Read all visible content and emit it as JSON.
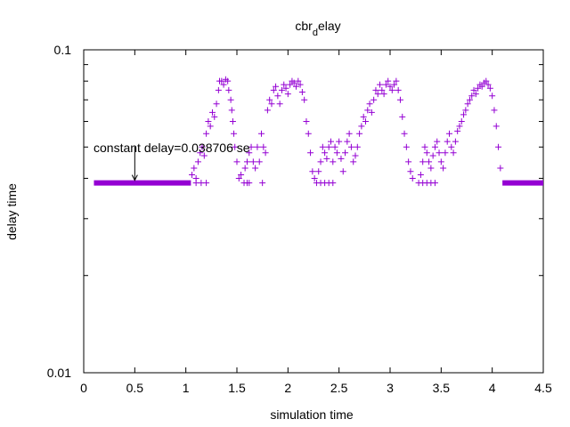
{
  "chart_data": {
    "type": "scatter",
    "title_main": "cbr",
    "title_sub": "d",
    "title_rest": "elay",
    "xlabel": "simulation time",
    "ylabel": "delay time",
    "xlim": [
      0,
      4.5
    ],
    "ylim": [
      0.01,
      0.1
    ],
    "y_scale": "log",
    "grid": false,
    "marker": "plus",
    "color": "#9400d3",
    "x_ticks": [
      {
        "v": 0,
        "label": "0"
      },
      {
        "v": 0.5,
        "label": "0.5"
      },
      {
        "v": 1,
        "label": "1"
      },
      {
        "v": 1.5,
        "label": "1.5"
      },
      {
        "v": 2,
        "label": "2"
      },
      {
        "v": 2.5,
        "label": "2.5"
      },
      {
        "v": 3,
        "label": "3"
      },
      {
        "v": 3.5,
        "label": "3.5"
      },
      {
        "v": 4,
        "label": "4"
      },
      {
        "v": 4.5,
        "label": "4.5"
      }
    ],
    "y_ticks": [
      {
        "v": 0.01,
        "label": "0.01"
      },
      {
        "v": 0.1,
        "label": "0.1"
      }
    ],
    "y_minor_ticks": [
      0.02,
      0.03,
      0.04,
      0.05,
      0.06,
      0.07,
      0.08,
      0.09
    ],
    "annotation": {
      "text": "constant delay=0.038706 se",
      "x": 0.5,
      "y": 0.0387
    },
    "constant_segments": [
      {
        "x_start": 0.1,
        "x_end": 1.05,
        "y": 0.0387
      },
      {
        "x_start": 4.1,
        "x_end": 4.5,
        "y": 0.0387
      }
    ],
    "points": [
      [
        1.1,
        0.0387
      ],
      [
        1.15,
        0.0387
      ],
      [
        1.2,
        0.0387
      ],
      [
        1.06,
        0.041
      ],
      [
        1.08,
        0.043
      ],
      [
        1.1,
        0.04
      ],
      [
        1.12,
        0.045
      ],
      [
        1.14,
        0.048
      ],
      [
        1.16,
        0.05
      ],
      [
        1.18,
        0.047
      ],
      [
        1.2,
        0.055
      ],
      [
        1.22,
        0.06
      ],
      [
        1.24,
        0.058
      ],
      [
        1.26,
        0.064
      ],
      [
        1.28,
        0.062
      ],
      [
        1.3,
        0.068
      ],
      [
        1.32,
        0.075
      ],
      [
        1.33,
        0.08
      ],
      [
        1.35,
        0.08
      ],
      [
        1.37,
        0.078
      ],
      [
        1.39,
        0.081
      ],
      [
        1.41,
        0.08
      ],
      [
        1.42,
        0.075
      ],
      [
        1.44,
        0.07
      ],
      [
        1.45,
        0.065
      ],
      [
        1.46,
        0.06
      ],
      [
        1.47,
        0.055
      ],
      [
        1.48,
        0.05
      ],
      [
        1.5,
        0.045
      ],
      [
        1.52,
        0.04
      ],
      [
        1.54,
        0.041
      ],
      [
        1.57,
        0.0387
      ],
      [
        1.6,
        0.0387
      ],
      [
        1.62,
        0.0387
      ],
      [
        1.58,
        0.043
      ],
      [
        1.6,
        0.045
      ],
      [
        1.62,
        0.048
      ],
      [
        1.64,
        0.05
      ],
      [
        1.66,
        0.045
      ],
      [
        1.68,
        0.043
      ],
      [
        1.7,
        0.05
      ],
      [
        1.72,
        0.045
      ],
      [
        1.74,
        0.055
      ],
      [
        1.75,
        0.0387
      ],
      [
        1.76,
        0.05
      ],
      [
        1.78,
        0.048
      ],
      [
        1.8,
        0.065
      ],
      [
        1.82,
        0.07
      ],
      [
        1.84,
        0.068
      ],
      [
        1.86,
        0.075
      ],
      [
        1.88,
        0.077
      ],
      [
        1.9,
        0.072
      ],
      [
        1.92,
        0.068
      ],
      [
        1.94,
        0.075
      ],
      [
        1.96,
        0.078
      ],
      [
        1.98,
        0.076
      ],
      [
        2.0,
        0.073
      ],
      [
        2.02,
        0.078
      ],
      [
        2.04,
        0.08
      ],
      [
        2.06,
        0.079
      ],
      [
        2.08,
        0.077
      ],
      [
        2.1,
        0.08
      ],
      [
        2.12,
        0.078
      ],
      [
        2.14,
        0.074
      ],
      [
        2.16,
        0.07
      ],
      [
        2.18,
        0.06
      ],
      [
        2.2,
        0.055
      ],
      [
        2.22,
        0.048
      ],
      [
        2.24,
        0.042
      ],
      [
        2.26,
        0.04
      ],
      [
        2.28,
        0.0387
      ],
      [
        2.32,
        0.0387
      ],
      [
        2.36,
        0.0387
      ],
      [
        2.4,
        0.0387
      ],
      [
        2.44,
        0.0387
      ],
      [
        2.3,
        0.042
      ],
      [
        2.32,
        0.045
      ],
      [
        2.34,
        0.05
      ],
      [
        2.36,
        0.048
      ],
      [
        2.38,
        0.046
      ],
      [
        2.4,
        0.05
      ],
      [
        2.42,
        0.052
      ],
      [
        2.44,
        0.045
      ],
      [
        2.46,
        0.05
      ],
      [
        2.48,
        0.048
      ],
      [
        2.5,
        0.052
      ],
      [
        2.52,
        0.046
      ],
      [
        2.54,
        0.042
      ],
      [
        2.56,
        0.048
      ],
      [
        2.58,
        0.052
      ],
      [
        2.6,
        0.055
      ],
      [
        2.62,
        0.05
      ],
      [
        2.64,
        0.045
      ],
      [
        2.66,
        0.047
      ],
      [
        2.68,
        0.05
      ],
      [
        2.7,
        0.055
      ],
      [
        2.72,
        0.058
      ],
      [
        2.74,
        0.062
      ],
      [
        2.76,
        0.06
      ],
      [
        2.78,
        0.065
      ],
      [
        2.8,
        0.068
      ],
      [
        2.82,
        0.064
      ],
      [
        2.84,
        0.07
      ],
      [
        2.86,
        0.075
      ],
      [
        2.88,
        0.073
      ],
      [
        2.9,
        0.078
      ],
      [
        2.92,
        0.075
      ],
      [
        2.94,
        0.073
      ],
      [
        2.96,
        0.078
      ],
      [
        2.98,
        0.08
      ],
      [
        3.0,
        0.077
      ],
      [
        3.02,
        0.075
      ],
      [
        3.04,
        0.078
      ],
      [
        3.06,
        0.08
      ],
      [
        3.08,
        0.075
      ],
      [
        3.1,
        0.07
      ],
      [
        3.12,
        0.062
      ],
      [
        3.14,
        0.055
      ],
      [
        3.16,
        0.05
      ],
      [
        3.18,
        0.045
      ],
      [
        3.2,
        0.042
      ],
      [
        3.22,
        0.04
      ],
      [
        3.28,
        0.0387
      ],
      [
        3.32,
        0.0387
      ],
      [
        3.36,
        0.0387
      ],
      [
        3.4,
        0.0387
      ],
      [
        3.44,
        0.0387
      ],
      [
        3.3,
        0.041
      ],
      [
        3.32,
        0.045
      ],
      [
        3.34,
        0.05
      ],
      [
        3.36,
        0.048
      ],
      [
        3.38,
        0.045
      ],
      [
        3.4,
        0.043
      ],
      [
        3.42,
        0.047
      ],
      [
        3.44,
        0.05
      ],
      [
        3.46,
        0.052
      ],
      [
        3.48,
        0.048
      ],
      [
        3.5,
        0.045
      ],
      [
        3.52,
        0.043
      ],
      [
        3.54,
        0.048
      ],
      [
        3.56,
        0.052
      ],
      [
        3.58,
        0.055
      ],
      [
        3.6,
        0.05
      ],
      [
        3.62,
        0.048
      ],
      [
        3.64,
        0.052
      ],
      [
        3.66,
        0.056
      ],
      [
        3.68,
        0.058
      ],
      [
        3.7,
        0.06
      ],
      [
        3.72,
        0.063
      ],
      [
        3.74,
        0.065
      ],
      [
        3.76,
        0.068
      ],
      [
        3.78,
        0.07
      ],
      [
        3.8,
        0.072
      ],
      [
        3.82,
        0.075
      ],
      [
        3.84,
        0.073
      ],
      [
        3.86,
        0.076
      ],
      [
        3.88,
        0.078
      ],
      [
        3.9,
        0.077
      ],
      [
        3.92,
        0.079
      ],
      [
        3.94,
        0.08
      ],
      [
        3.96,
        0.078
      ],
      [
        3.98,
        0.076
      ],
      [
        4.0,
        0.072
      ],
      [
        4.02,
        0.065
      ],
      [
        4.04,
        0.058
      ],
      [
        4.06,
        0.05
      ],
      [
        4.08,
        0.043
      ]
    ]
  }
}
